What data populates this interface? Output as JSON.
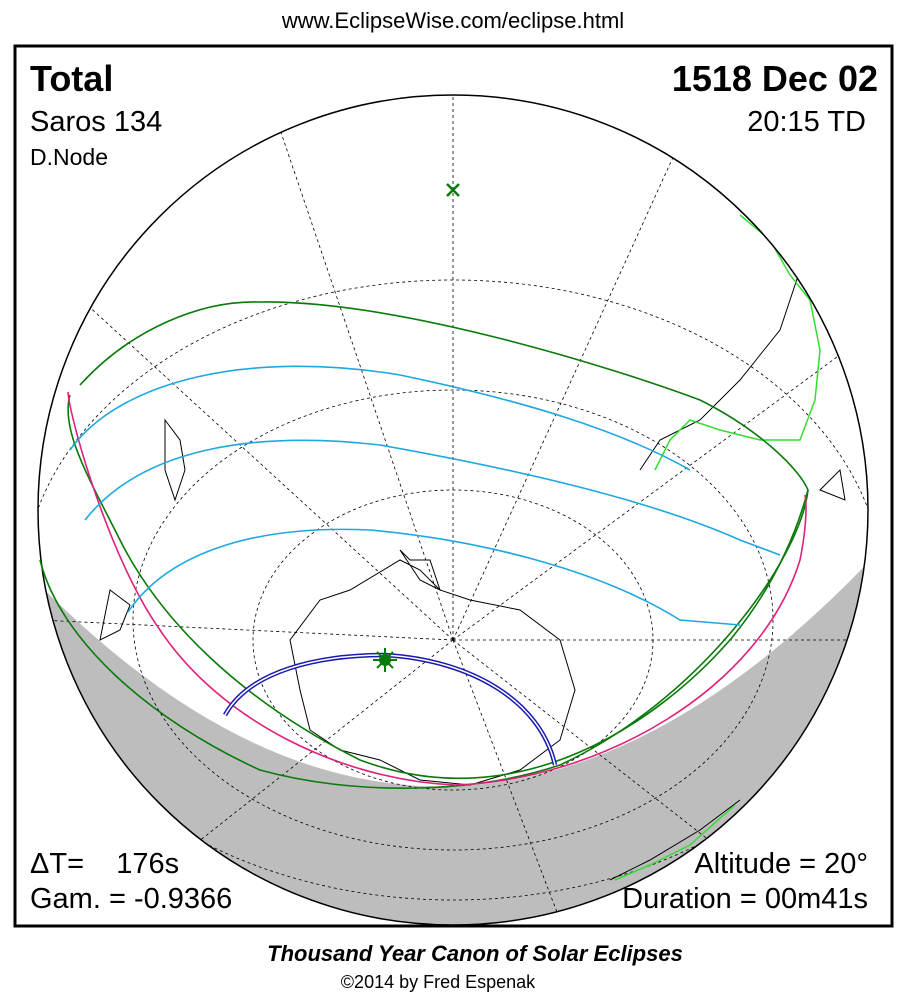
{
  "header": {
    "url": "www.EclipseWise.com/eclipse.html"
  },
  "map": {
    "type_label": "Total",
    "date": "1518 Dec 02",
    "saros": "Saros 134",
    "time": "20:15 TD",
    "node": "D.Node",
    "delta_t": "ΔT=    176s",
    "gamma": "Gam. = -0.9366",
    "altitude": "Altitude = 20°",
    "duration": "Duration = 00m41s"
  },
  "footer": {
    "title": "Thousand Year Canon of Solar Eclipses",
    "credit": "©2014 by Fred Espenak"
  }
}
